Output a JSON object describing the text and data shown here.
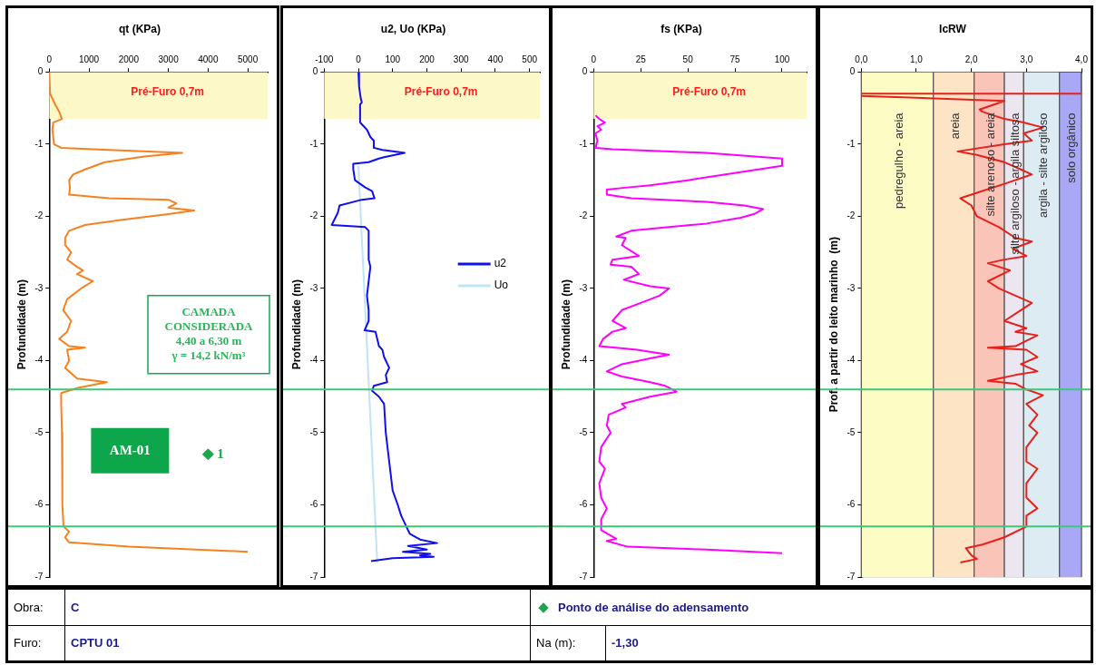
{
  "chart_data": [
    {
      "type": "line",
      "title": "qt (KPa)",
      "ylabel": "Profundidade (m)",
      "xlim": [
        0,
        5500
      ],
      "xticks": [
        0,
        1000,
        2000,
        3000,
        4000,
        5000
      ],
      "ylim": [
        -7,
        0
      ],
      "yticks": [
        0,
        -1,
        -2,
        -3,
        -4,
        -5,
        -6,
        -7
      ],
      "series": [
        {
          "color": "#f7811e",
          "x": [
            0,
            20,
            150,
            250,
            320,
            100,
            80,
            100,
            120,
            300,
            1500,
            3350,
            2400,
            1400,
            900,
            600,
            500,
            520,
            500,
            1500,
            3000,
            3200,
            3000,
            3650,
            3000,
            1800,
            900,
            500,
            400,
            400,
            550,
            450,
            700,
            850,
            700,
            1100,
            800,
            450,
            350,
            550,
            450,
            250,
            500,
            900,
            450,
            500,
            400,
            700,
            1450,
            700,
            300,
            300,
            320,
            330,
            360,
            500,
            400,
            500,
            2000,
            5000
          ],
          "values": [
            0,
            -0.3,
            -0.45,
            -0.55,
            -0.65,
            -0.7,
            -0.8,
            -0.9,
            -1,
            -1.05,
            -1.08,
            -1.12,
            -1.17,
            -1.25,
            -1.35,
            -1.42,
            -1.5,
            -1.6,
            -1.7,
            -1.75,
            -1.77,
            -1.82,
            -1.88,
            -1.92,
            -1.97,
            -2.05,
            -2.12,
            -2.2,
            -2.3,
            -2.4,
            -2.5,
            -2.6,
            -2.7,
            -2.75,
            -2.8,
            -2.9,
            -3,
            -3.15,
            -3.3,
            -3.45,
            -3.6,
            -3.7,
            -3.8,
            -3.82,
            -3.85,
            -4,
            -4.1,
            -4.25,
            -4.3,
            -4.38,
            -4.45,
            -4.6,
            -5,
            -6,
            -6.3,
            -6.37,
            -6.45,
            -6.52,
            -6.58,
            -6.65
          ]
        },
        {
          "type": "scatter",
          "name": "1",
          "marker": "diamond",
          "color": "#1aa64a",
          "x": [
            4000
          ],
          "values": [
            -5.3
          ]
        }
      ],
      "bands": [
        {
          "axis": "y",
          "from": 0,
          "to": -0.65,
          "label": "Pré-Furo 0,7m",
          "color": "#fdf8c8"
        }
      ],
      "ref_lines": [
        {
          "axis": "y",
          "value": -4.4,
          "color": "#3cc878"
        },
        {
          "axis": "y",
          "value": -6.3,
          "color": "#3cc878"
        }
      ],
      "annotations": [
        "CAMADA\nCONSIDERADA\n4,40 a 6,30 m\nγ = 14,2 kN/m³",
        "AM-01"
      ]
    },
    {
      "type": "line",
      "title": "u2, Uo (KPa)",
      "ylabel": "Profundidade (m)",
      "xlim": [
        -100,
        530
      ],
      "xticks": [
        -100,
        0,
        100,
        200,
        300,
        400,
        500
      ],
      "ylim": [
        -7,
        0
      ],
      "yticks": [
        0,
        -1,
        -2,
        -3,
        -4,
        -5,
        -6,
        -7
      ],
      "legend": "right",
      "series": [
        {
          "name": "u2",
          "color": "#1010ee",
          "x": [
            0,
            2,
            7,
            10,
            5,
            5,
            15,
            25,
            35,
            45,
            45,
            70,
            135,
            75,
            60,
            30,
            -15,
            -15,
            -10,
            5,
            20,
            40,
            47,
            10,
            -55,
            -60,
            -78,
            20,
            30,
            30,
            35,
            30,
            25,
            30,
            30,
            18,
            50,
            55,
            60,
            70,
            75,
            90,
            80,
            84,
            45,
            40,
            60,
            75,
            80,
            90,
            95,
            100,
            115,
            125,
            140,
            150,
            180,
            230,
            145,
            200,
            130,
            210,
            180,
            220,
            100,
            37
          ],
          "values": [
            0,
            -0.2,
            -0.37,
            -0.42,
            -0.45,
            -0.7,
            -0.75,
            -0.8,
            -0.9,
            -0.95,
            -1.05,
            -1.08,
            -1.12,
            -1.18,
            -1.2,
            -1.25,
            -1.27,
            -1.35,
            -1.5,
            -1.55,
            -1.6,
            -1.65,
            -1.75,
            -1.77,
            -1.85,
            -1.95,
            -2.12,
            -2.15,
            -2.2,
            -2.6,
            -2.7,
            -2.9,
            -3.1,
            -3.3,
            -3.45,
            -3.58,
            -3.6,
            -3.7,
            -3.8,
            -3.85,
            -3.95,
            -4.1,
            -4.2,
            -4.3,
            -4.35,
            -4.42,
            -4.5,
            -4.6,
            -5,
            -5.4,
            -5.6,
            -5.8,
            -6,
            -6.15,
            -6.3,
            -6.4,
            -6.48,
            -6.53,
            -6.57,
            -6.62,
            -6.65,
            -6.68,
            -6.7,
            -6.72,
            -6.74,
            -6.78
          ]
        },
        {
          "name": "Uo",
          "color": "#bfe3f7",
          "x": [
            0,
            55
          ],
          "values": [
            -1.3,
            -6.8
          ]
        }
      ],
      "bands": [
        {
          "axis": "y",
          "from": 0,
          "to": -0.65,
          "label": "Pré-Furo 0,7m",
          "color": "#fdf8c8"
        }
      ],
      "ref_lines": [
        {
          "axis": "y",
          "value": -4.4,
          "color": "#3cc878"
        },
        {
          "axis": "y",
          "value": -6.3,
          "color": "#3cc878"
        }
      ]
    },
    {
      "type": "line",
      "title": "fs (KPa)",
      "ylabel": "Profundidade (m)",
      "xlim": [
        0,
        113
      ],
      "xticks": [
        0,
        25,
        50,
        75,
        100
      ],
      "ylim": [
        -7,
        0
      ],
      "yticks": [
        0,
        -1,
        -2,
        -3,
        -4,
        -5,
        -6,
        -7
      ],
      "series": [
        {
          "color": "#ff00ff",
          "x": [
            1,
            3,
            6,
            2,
            4,
            1,
            2,
            1,
            10,
            60,
            100,
            100,
            70,
            50,
            30,
            18,
            7,
            7,
            20,
            60,
            80,
            90,
            85,
            78,
            60,
            40,
            20,
            12,
            17,
            15,
            24,
            10,
            9,
            20,
            24,
            16,
            30,
            40,
            35,
            25,
            15,
            10,
            17,
            10,
            5,
            3,
            23,
            40,
            30,
            15,
            7,
            15,
            30,
            38,
            44,
            30,
            15,
            17,
            8,
            7,
            9,
            4,
            3,
            6,
            3,
            4,
            7,
            4,
            4,
            12,
            7,
            18,
            60,
            100
          ],
          "values": [
            -0.6,
            -0.65,
            -0.7,
            -0.75,
            -0.8,
            -0.85,
            -0.95,
            -1.05,
            -1.07,
            -1.12,
            -1.2,
            -1.3,
            -1.42,
            -1.5,
            -1.57,
            -1.6,
            -1.63,
            -1.7,
            -1.75,
            -1.8,
            -1.85,
            -1.9,
            -1.97,
            -2.02,
            -2.1,
            -2.15,
            -2.2,
            -2.28,
            -2.3,
            -2.4,
            -2.55,
            -2.6,
            -2.67,
            -2.7,
            -2.8,
            -2.88,
            -2.97,
            -3,
            -3.1,
            -3.2,
            -3.3,
            -3.45,
            -3.55,
            -3.6,
            -3.7,
            -3.8,
            -3.85,
            -3.92,
            -3.97,
            -4.05,
            -4.15,
            -4.22,
            -4.3,
            -4.35,
            -4.43,
            -4.5,
            -4.6,
            -4.65,
            -4.75,
            -4.9,
            -5,
            -5.2,
            -5.4,
            -5.5,
            -5.7,
            -5.9,
            -6.05,
            -6.2,
            -6.35,
            -6.47,
            -6.5,
            -6.58,
            -6.62,
            -6.67
          ]
        }
      ],
      "bands": [
        {
          "axis": "y",
          "from": 0,
          "to": -0.65,
          "label": "Pré-Furo 0,7m",
          "color": "#fdf8c8"
        }
      ],
      "ref_lines": [
        {
          "axis": "y",
          "value": -4.4,
          "color": "#3cc878"
        },
        {
          "axis": "y",
          "value": -6.3,
          "color": "#3cc878"
        }
      ]
    },
    {
      "type": "line",
      "title": "IcRW",
      "ylabel": "Prof. a partir do leito marinho  (m)",
      "xlim": [
        0,
        4
      ],
      "xticks": [
        {
          "value": 0,
          "label": "0,0"
        },
        {
          "value": 1,
          "label": "1,0"
        },
        {
          "value": 2,
          "label": "2,0"
        },
        {
          "value": 3,
          "label": "3,0"
        },
        {
          "value": 4,
          "label": "4,0"
        }
      ],
      "ylim": [
        -7,
        0
      ],
      "yticks": [
        0,
        -1,
        -2,
        -3,
        -4,
        -5,
        -6,
        -7
      ],
      "grid": true,
      "series": [
        {
          "color": "#e8201c",
          "x": [
            4,
            4,
            0,
            0,
            2.6,
            2.15,
            2.2,
            2.4,
            2.6,
            2.95,
            3.3,
            2.95,
            3.1,
            2.6,
            1.75,
            2.1,
            2.6,
            2.9,
            3.1,
            2.6,
            2,
            1.8,
            2,
            2.1,
            2.5,
            2.8,
            3.1,
            2.75,
            3,
            2.6,
            2.3,
            2.5,
            2.7,
            2.3,
            2.5,
            2.8,
            3.1,
            2.9,
            2.6,
            2.8,
            3,
            2.8,
            3.2,
            2.8,
            2.3,
            3,
            3.2,
            2.9,
            3.2,
            2.8,
            2.5,
            2.3,
            2.8,
            3,
            3.3,
            3,
            3.2,
            3.05,
            3.2,
            3,
            3,
            3.2,
            3,
            3,
            3.2,
            3,
            3,
            2.6,
            2.2,
            1.9,
            2,
            2.1,
            1.8
          ],
          "values": [
            0,
            -0.3,
            -0.3,
            -0.33,
            -0.4,
            -0.52,
            -0.55,
            -0.6,
            -0.65,
            -0.7,
            -0.77,
            -0.85,
            -0.95,
            -1,
            -1.1,
            -1.15,
            -1.25,
            -1.35,
            -1.42,
            -1.55,
            -1.7,
            -1.75,
            -1.85,
            -2,
            -2.15,
            -2.3,
            -2.35,
            -2.45,
            -2.55,
            -2.6,
            -2.65,
            -2.7,
            -2.75,
            -2.9,
            -3,
            -3.1,
            -3.2,
            -3.3,
            -3.45,
            -3.5,
            -3.55,
            -3.6,
            -3.65,
            -3.8,
            -3.82,
            -3.85,
            -3.95,
            -4.05,
            -4.15,
            -4.2,
            -4.25,
            -4.28,
            -4.32,
            -4.4,
            -4.48,
            -4.6,
            -4.75,
            -4.9,
            -5,
            -5.2,
            -5.4,
            -5.5,
            -5.7,
            -5.9,
            -6.05,
            -6.15,
            -6.3,
            -6.45,
            -6.55,
            -6.6,
            -6.7,
            -6.75,
            -6.8
          ]
        }
      ],
      "bands": [
        {
          "axis": "x",
          "from": 0,
          "to": 1.31,
          "label": "pedregulho - areia",
          "color": "#fdfcc4"
        },
        {
          "axis": "x",
          "from": 1.31,
          "to": 2.05,
          "label": "areia",
          "color": "#fde4c4"
        },
        {
          "axis": "x",
          "from": 2.05,
          "to": 2.6,
          "label": "silte arenoso - areia",
          "color": "#fac4b8"
        },
        {
          "axis": "x",
          "from": 2.6,
          "to": 2.95,
          "label": "silte argiloso - argila siltosa",
          "color": "#ebe6f0"
        },
        {
          "axis": "x",
          "from": 2.95,
          "to": 3.6,
          "label": "argila - silte argiloso",
          "color": "#dcecf2"
        },
        {
          "axis": "x",
          "from": 3.6,
          "to": 4,
          "label": "solo orgânico",
          "color": "#a8a8f6"
        }
      ],
      "ref_lines": [
        {
          "axis": "y",
          "value": -4.4,
          "color": "#3cc878"
        },
        {
          "axis": "y",
          "value": -6.3,
          "color": "#3cc878"
        }
      ]
    },
    {
      "type": "other",
      "annotations": [
        "Obra:",
        "C",
        "Furo:",
        "CPTU 01",
        "Ponto de análise do adensamento",
        "Na (m):",
        "-1,30"
      ]
    }
  ]
}
